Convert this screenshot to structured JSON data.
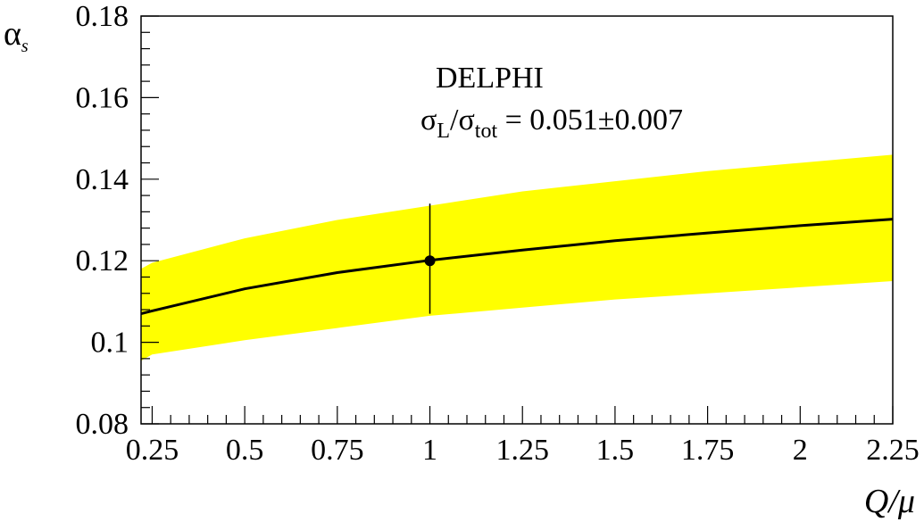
{
  "chart_data": {
    "type": "line",
    "title": "",
    "ylabel": "α",
    "ylabel_sub": "s",
    "xlabel": "Q/μ",
    "xlim": [
      0.22,
      2.25
    ],
    "ylim": [
      0.08,
      0.18
    ],
    "x_ticks": [
      0.25,
      0.5,
      0.75,
      1,
      1.25,
      1.5,
      1.75,
      2,
      2.25
    ],
    "x_tick_labels": [
      "0.25",
      "0.5",
      "0.75",
      "1",
      "1.25",
      "1.5",
      "1.75",
      "2",
      "2.25"
    ],
    "y_ticks": [
      0.08,
      0.1,
      0.12,
      0.14,
      0.16,
      0.18
    ],
    "y_tick_labels": [
      "0.08",
      "0.1",
      "0.12",
      "0.14",
      "0.16",
      "0.18"
    ],
    "annotation": {
      "experiment": "DELPHI",
      "ratio_symbol": "σ",
      "ratio_sub_num": "L",
      "ratio_slash": "/",
      "ratio_symbol_den": "σ",
      "ratio_sub_den": "tot",
      "ratio_value": " = 0.051±0.007"
    },
    "series": [
      {
        "kind": "central-curve",
        "color": "#000000",
        "x": [
          0.22,
          0.25,
          0.5,
          0.75,
          1.0,
          1.25,
          1.5,
          1.75,
          2.0,
          2.25
        ],
        "y": [
          0.107,
          0.1077,
          0.1131,
          0.1171,
          0.1201,
          0.1226,
          0.1249,
          0.1268,
          0.1286,
          0.1302
        ]
      },
      {
        "kind": "uncertainty-band",
        "color": "#ffff00",
        "x": [
          0.22,
          0.25,
          0.5,
          0.75,
          1.0,
          1.25,
          1.5,
          1.75,
          2.0,
          2.25
        ],
        "y_low": [
          0.0955,
          0.097,
          0.1005,
          0.1035,
          0.1065,
          0.1085,
          0.1105,
          0.112,
          0.1135,
          0.115
        ],
        "y_high": [
          0.118,
          0.1195,
          0.1255,
          0.13,
          0.1335,
          0.137,
          0.1395,
          0.142,
          0.144,
          0.146
        ]
      }
    ],
    "point": {
      "x": 1.0,
      "y": 0.12,
      "err_low": 0.107,
      "err_high": 0.134
    }
  }
}
